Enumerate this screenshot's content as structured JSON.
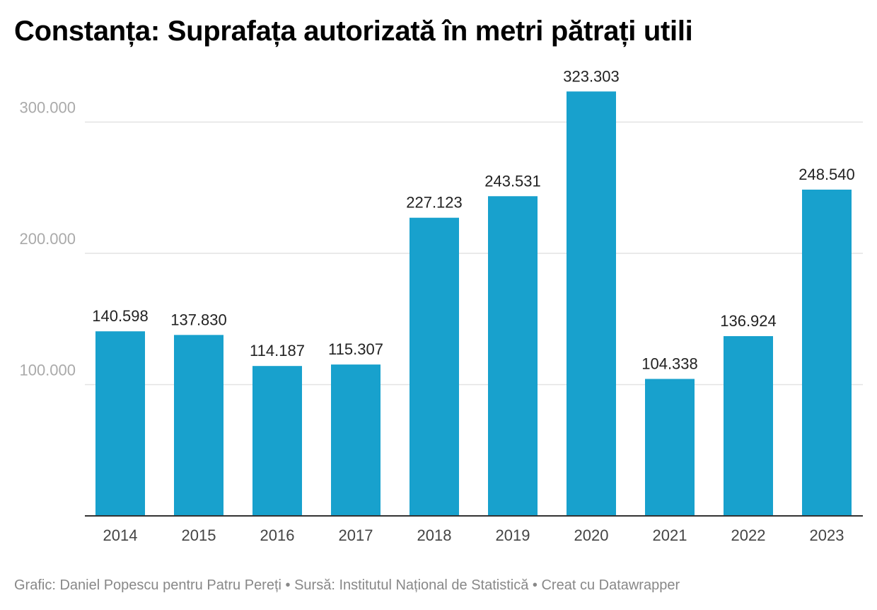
{
  "chart_data": {
    "type": "bar",
    "title": "Constanța: Suprafața autorizată în metri pătrați utili",
    "categories": [
      "2014",
      "2015",
      "2016",
      "2017",
      "2018",
      "2019",
      "2020",
      "2021",
      "2022",
      "2023"
    ],
    "values": [
      140598,
      137830,
      114187,
      115307,
      227123,
      243531,
      323303,
      104338,
      136924,
      248540
    ],
    "value_labels": [
      "140.598",
      "137.830",
      "114.187",
      "115.307",
      "227.123",
      "243.531",
      "323.303",
      "104.338",
      "136.924",
      "248.540"
    ],
    "yticks": [
      {
        "value": 100000,
        "label": "100.000"
      },
      {
        "value": 200000,
        "label": "200.000"
      },
      {
        "value": 300000,
        "label": "300.000"
      }
    ],
    "ylim": [
      0,
      300000
    ],
    "grid": true,
    "bar_color": "#18a1cd",
    "footer": "Grafic: Daniel Popescu pentru Patru Pereți • Sursă: Institutul Național de Statistică • Creat cu Datawrapper"
  }
}
